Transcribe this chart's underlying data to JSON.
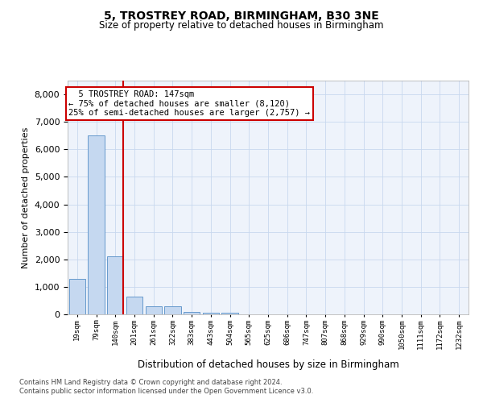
{
  "title1": "5, TROSTREY ROAD, BIRMINGHAM, B30 3NE",
  "title2": "Size of property relative to detached houses in Birmingham",
  "xlabel": "Distribution of detached houses by size in Birmingham",
  "ylabel": "Number of detached properties",
  "bar_labels": [
    "19sqm",
    "79sqm",
    "140sqm",
    "201sqm",
    "261sqm",
    "322sqm",
    "383sqm",
    "443sqm",
    "504sqm",
    "565sqm",
    "625sqm",
    "686sqm",
    "747sqm",
    "807sqm",
    "868sqm",
    "929sqm",
    "990sqm",
    "1050sqm",
    "1111sqm",
    "1172sqm",
    "1232sqm"
  ],
  "bar_values": [
    1300,
    6500,
    2100,
    650,
    290,
    290,
    100,
    65,
    65,
    0,
    0,
    0,
    0,
    0,
    0,
    0,
    0,
    0,
    0,
    0,
    0
  ],
  "bar_color": "#c5d8f0",
  "bar_edge_color": "#6699cc",
  "annotation_title": "5 TROSTREY ROAD: 147sqm",
  "annotation_line1": "← 75% of detached houses are smaller (8,120)",
  "annotation_line2": "25% of semi-detached houses are larger (2,757) →",
  "vline_color": "#cc0000",
  "footer1": "Contains HM Land Registry data © Crown copyright and database right 2024.",
  "footer2": "Contains public sector information licensed under the Open Government Licence v3.0.",
  "bg_color": "#eef3fb",
  "grid_color": "#c8d8ee",
  "ylim_max": 8500,
  "yticks": [
    0,
    1000,
    2000,
    3000,
    4000,
    5000,
    6000,
    7000,
    8000
  ]
}
